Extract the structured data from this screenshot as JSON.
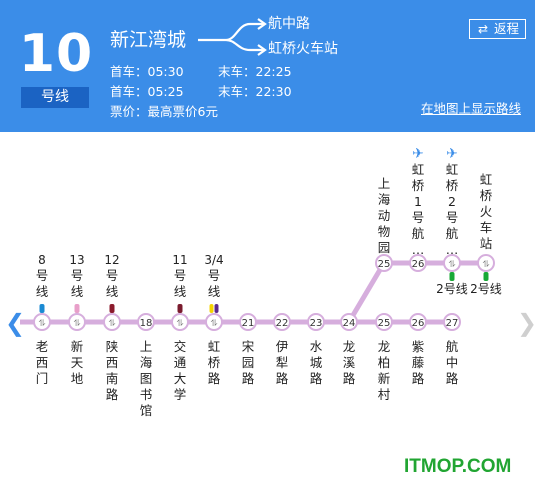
{
  "header": {
    "line_number": "10",
    "line_label": "号线",
    "origin": "新江湾城",
    "destinations": [
      "航中路",
      "虹桥火车站"
    ],
    "schedule": [
      {
        "first_label": "首车：",
        "first": "05:30",
        "last_label": "末车：",
        "last": "22:25"
      },
      {
        "first_label": "首车：",
        "first": "05:25",
        "last_label": "末车：",
        "last": "22:30"
      }
    ],
    "fare": "票价：最高票价6元",
    "return_label": "返程",
    "map_link": "在地图上显示路线"
  },
  "main_stations": [
    {
      "name": "老西门",
      "num": null,
      "transfer": "8号线",
      "color": "#1a8ad3"
    },
    {
      "name": "新天地",
      "num": null,
      "transfer": "13号线",
      "color": "#e89fc9"
    },
    {
      "name": "陕西南路",
      "num": null,
      "transfer": "12号线",
      "color": "#8b1a2c"
    },
    {
      "name": "上海图书馆",
      "num": "18",
      "transfer": null,
      "color": null
    },
    {
      "name": "交通大学",
      "num": null,
      "transfer": "11号线",
      "color": "#7a1b2e"
    },
    {
      "name": "虹桥路",
      "num": null,
      "transfer": "3/4号线",
      "color": "#f5d300",
      "color2": "#5c2a8c"
    },
    {
      "name": "宋园路",
      "num": "21",
      "transfer": null,
      "color": null
    },
    {
      "name": "伊犁路",
      "num": "22",
      "transfer": null,
      "color": null
    },
    {
      "name": "水城路",
      "num": "23",
      "transfer": null,
      "color": null
    },
    {
      "name": "龙溪路",
      "num": "24",
      "transfer": null,
      "color": null
    },
    {
      "name": "龙柏新村",
      "num": "25",
      "transfer": null,
      "color": null
    },
    {
      "name": "紫藤路",
      "num": "26",
      "transfer": null,
      "color": null
    },
    {
      "name": "航中路",
      "num": "27",
      "transfer": null,
      "color": null
    }
  ],
  "branch_stations": [
    {
      "name": "上海动物园",
      "num": "25",
      "airport": false,
      "transfer": null
    },
    {
      "name": "虹桥1号航…",
      "num": "26",
      "airport": true,
      "transfer": null
    },
    {
      "name": "虹桥2号航…",
      "num": null,
      "airport": true,
      "transfer": "2号线"
    },
    {
      "name": "虹桥火车站",
      "num": null,
      "airport": false,
      "transfer": "2号线"
    }
  ],
  "colors": {
    "header_bg": "#3b8de8",
    "line_color": "#d6aedd",
    "line2_color": "#18a836",
    "airport_color": "#3b8de8",
    "watermark": "#21a532"
  },
  "icons": {
    "return": "swap-arrows-icon",
    "prev": "chevron-left-icon",
    "next": "chevron-right-icon",
    "airport": "plane-icon",
    "transfer": "transfer-icon"
  },
  "watermark": "ITMOP.COM"
}
